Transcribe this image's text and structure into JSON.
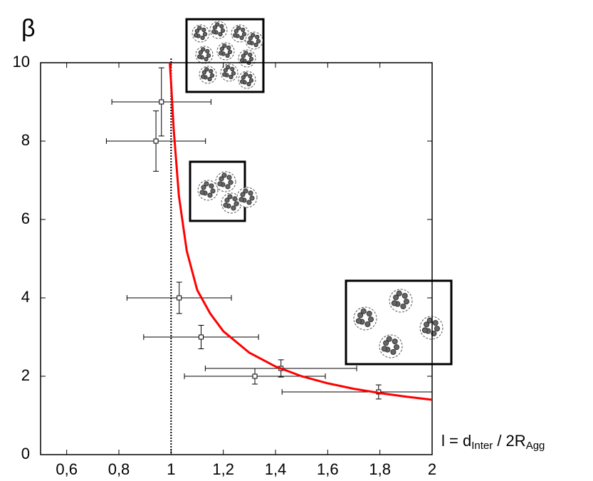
{
  "chart_data": {
    "type": "scatter",
    "ylabel": "β",
    "xlabel": [
      "l = d",
      "Inter",
      " / 2R",
      "Agg"
    ],
    "xlim": [
      0.5,
      2
    ],
    "ylim": [
      0,
      10
    ],
    "xticks": [
      {
        "value": 0.6,
        "label": "0,6"
      },
      {
        "value": 0.8,
        "label": "0,8"
      },
      1,
      {
        "value": 1.2,
        "label": "1,2"
      },
      {
        "value": 1.4,
        "label": "1,4"
      },
      {
        "value": 1.6,
        "label": "1,6"
      },
      {
        "value": 1.8,
        "label": "1,8"
      },
      2
    ],
    "yticks": [
      0,
      2,
      4,
      6,
      8,
      10
    ],
    "reference_x": 1,
    "series": [
      {
        "type": "scatter",
        "color": "#000000",
        "x": [
          0.963,
          0.942,
          1.031,
          1.115,
          1.321,
          1.421,
          1.795
        ],
        "values": [
          9,
          8,
          4,
          3,
          2,
          2.2,
          1.6
        ],
        "xerr": [
          0.19,
          0.19,
          0.2,
          0.22,
          0.27,
          0.29,
          0.37
        ],
        "yerr": [
          0.87,
          0.77,
          0.4,
          0.3,
          0.2,
          0.22,
          0.18
        ]
      },
      {
        "type": "line",
        "color": "#ff0000",
        "x": [
          0.995,
          1.0,
          1.01,
          1.03,
          1.06,
          1.1,
          1.15,
          1.2,
          1.3,
          1.4,
          1.5,
          1.6,
          1.7,
          1.8,
          1.9,
          2
        ],
        "values": [
          10,
          9.5,
          8.3,
          6.6,
          5.2,
          4.2,
          3.6,
          3.15,
          2.6,
          2.25,
          2.0,
          1.82,
          1.68,
          1.57,
          1.48,
          1.4
        ]
      }
    ]
  }
}
